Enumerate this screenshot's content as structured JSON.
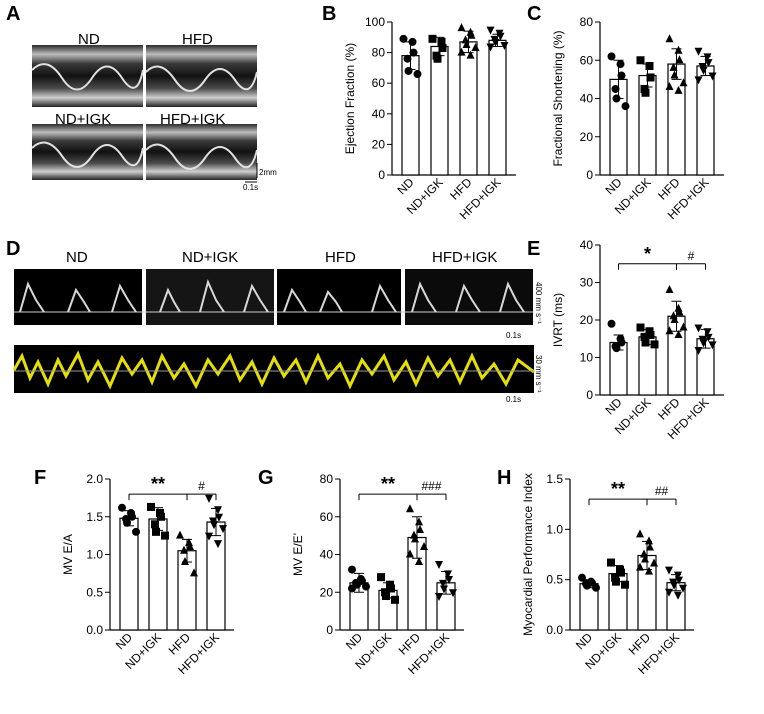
{
  "figure": {
    "panel_letters": [
      "A",
      "B",
      "C",
      "D",
      "E",
      "F",
      "G",
      "H"
    ]
  },
  "panel_a": {
    "letter": "A",
    "images": [
      {
        "label": "ND"
      },
      {
        "label": "HFD"
      },
      {
        "label": "ND+IGK"
      },
      {
        "label": "HFD+IGK"
      }
    ],
    "scale_vertical": "2mm",
    "scale_horizontal": "0.1s"
  },
  "panel_d": {
    "letter": "D",
    "images": [
      {
        "label": "ND"
      },
      {
        "label": "ND+IGK"
      },
      {
        "label": "HFD"
      },
      {
        "label": "HFD+IGK"
      }
    ],
    "scale_top_vertical": "400 mm s⁻¹",
    "scale_top_horizontal": "0.1s",
    "scale_bottom_vertical": "30 mm s⁻¹",
    "scale_bottom_horizontal": "0.1s"
  },
  "chart_data": [
    {
      "panel": "B",
      "type": "bar",
      "categories": [
        "ND",
        "ND+IGK",
        "HFD",
        "HFD+IGK"
      ],
      "ylabel": "Ejection Fraction (%)",
      "ylim": [
        0,
        100
      ],
      "yticks": [
        0,
        20,
        40,
        60,
        80,
        100
      ],
      "values": [
        78,
        84,
        87,
        88
      ],
      "errors": [
        9,
        6,
        7,
        4
      ],
      "markers": [
        "circle",
        "square",
        "triangle",
        "triangle-down"
      ],
      "points": [
        [
          89,
          87,
          80,
          76,
          68,
          66
        ],
        [
          89,
          87,
          83,
          78,
          76
        ],
        [
          96,
          93,
          91,
          88,
          85,
          83,
          80,
          78
        ],
        [
          95,
          93,
          91,
          89,
          87,
          85,
          84
        ]
      ],
      "significance": []
    },
    {
      "panel": "C",
      "type": "bar",
      "categories": [
        "ND",
        "ND+IGK",
        "HFD",
        "HFD+IGK"
      ],
      "ylabel": "Fractional Shortening (%)",
      "ylim": [
        0,
        80
      ],
      "yticks": [
        0,
        20,
        40,
        60,
        80
      ],
      "values": [
        50,
        52,
        58,
        57
      ],
      "errors": [
        10,
        6,
        8,
        5
      ],
      "markers": [
        "circle",
        "square",
        "triangle",
        "triangle-down"
      ],
      "points": [
        [
          62,
          58,
          52,
          45,
          40,
          36
        ],
        [
          60,
          57,
          51,
          45,
          43
        ],
        [
          71,
          65,
          60,
          56,
          52,
          48,
          46,
          44
        ],
        [
          65,
          62,
          59,
          57,
          55,
          52,
          50
        ]
      ],
      "significance": []
    },
    {
      "panel": "E",
      "type": "bar",
      "categories": [
        "ND",
        "ND+IGK",
        "HFD",
        "HFD+IGK"
      ],
      "ylabel": "IVRT (ms)",
      "ylim": [
        0,
        40
      ],
      "yticks": [
        0,
        10,
        20,
        30,
        40
      ],
      "values": [
        14,
        15.5,
        21,
        15
      ],
      "errors": [
        2,
        2,
        4,
        2.5
      ],
      "markers": [
        "circle",
        "square",
        "triangle",
        "triangle-down"
      ],
      "points": [
        [
          19,
          15,
          14,
          13,
          12.5
        ],
        [
          18,
          17,
          16,
          15.5,
          14,
          13.5
        ],
        [
          28,
          23,
          22,
          21,
          20,
          18,
          17,
          16
        ],
        [
          18,
          17,
          15.5,
          15,
          14,
          13.5,
          12
        ]
      ],
      "significance": [
        {
          "label": "*",
          "from": 0,
          "to": 2,
          "y": 35,
          "style": "star"
        },
        {
          "label": "#",
          "from": 2,
          "to": 3,
          "y": 35,
          "style": "hash"
        }
      ]
    },
    {
      "panel": "F",
      "type": "bar",
      "categories": [
        "ND",
        "ND+IGK",
        "HFD",
        "HFD+IGK"
      ],
      "ylabel": "MV E/A",
      "ylim": [
        0,
        2.0
      ],
      "yticks": [
        0.0,
        0.5,
        1.0,
        1.5,
        2.0
      ],
      "values": [
        1.48,
        1.47,
        1.05,
        1.43
      ],
      "errors": [
        0.1,
        0.15,
        0.15,
        0.18
      ],
      "markers": [
        "circle",
        "square",
        "triangle",
        "triangle-down"
      ],
      "points": [
        [
          1.62,
          1.55,
          1.5,
          1.47,
          1.42,
          1.3
        ],
        [
          1.63,
          1.55,
          1.5,
          1.4,
          1.3,
          1.25
        ],
        [
          1.25,
          1.15,
          1.1,
          1.05,
          0.9,
          0.75
        ],
        [
          1.75,
          1.6,
          1.5,
          1.45,
          1.4,
          1.35,
          1.25,
          1.15
        ]
      ],
      "significance": [
        {
          "label": "**",
          "from": 0,
          "to": 2,
          "y": 1.8,
          "style": "star"
        },
        {
          "label": "#",
          "from": 2,
          "to": 3,
          "y": 1.8,
          "style": "hash"
        }
      ]
    },
    {
      "panel": "G",
      "type": "bar",
      "categories": [
        "ND",
        "ND+IGK",
        "HFD",
        "HFD+IGK"
      ],
      "ylabel": "MV E/E'",
      "ylim": [
        0,
        80
      ],
      "yticks": [
        0,
        20,
        40,
        60,
        80
      ],
      "values": [
        25,
        21,
        49,
        25
      ],
      "errors": [
        5,
        4,
        11,
        6
      ],
      "markers": [
        "circle",
        "square",
        "triangle",
        "triangle-down"
      ],
      "points": [
        [
          32,
          27,
          26,
          25,
          24,
          23,
          22
        ],
        [
          28,
          24,
          22,
          20,
          18,
          16
        ],
        [
          64,
          57,
          53,
          50,
          48,
          44,
          40,
          36
        ],
        [
          35,
          30,
          27,
          25,
          22,
          20,
          18
        ]
      ],
      "significance": [
        {
          "label": "**",
          "from": 0,
          "to": 2,
          "y": 72,
          "style": "star"
        },
        {
          "label": "###",
          "from": 2,
          "to": 3,
          "y": 72,
          "style": "hash"
        }
      ]
    },
    {
      "panel": "H",
      "type": "bar",
      "categories": [
        "ND",
        "ND+IGK",
        "HFD",
        "HFD+IGK"
      ],
      "ylabel": "Myocardial Performance Index",
      "ylim": [
        0,
        1.5
      ],
      "yticks": [
        0.0,
        0.5,
        1.0,
        1.5
      ],
      "values": [
        0.46,
        0.56,
        0.74,
        0.47
      ],
      "errors": [
        0.04,
        0.08,
        0.14,
        0.08
      ],
      "markers": [
        "circle",
        "square",
        "triangle",
        "triangle-down"
      ],
      "points": [
        [
          0.52,
          0.48,
          0.47,
          0.46,
          0.44,
          0.42
        ],
        [
          0.67,
          0.6,
          0.57,
          0.52,
          0.48,
          0.45
        ],
        [
          0.95,
          0.88,
          0.82,
          0.75,
          0.7,
          0.66,
          0.62,
          0.58
        ],
        [
          0.6,
          0.55,
          0.5,
          0.48,
          0.45,
          0.42,
          0.38,
          0.35
        ]
      ],
      "significance": [
        {
          "label": "**",
          "from": 0,
          "to": 2,
          "y": 1.3,
          "style": "star"
        },
        {
          "label": "##",
          "from": 2,
          "to": 3,
          "y": 1.3,
          "style": "hash"
        }
      ]
    }
  ]
}
